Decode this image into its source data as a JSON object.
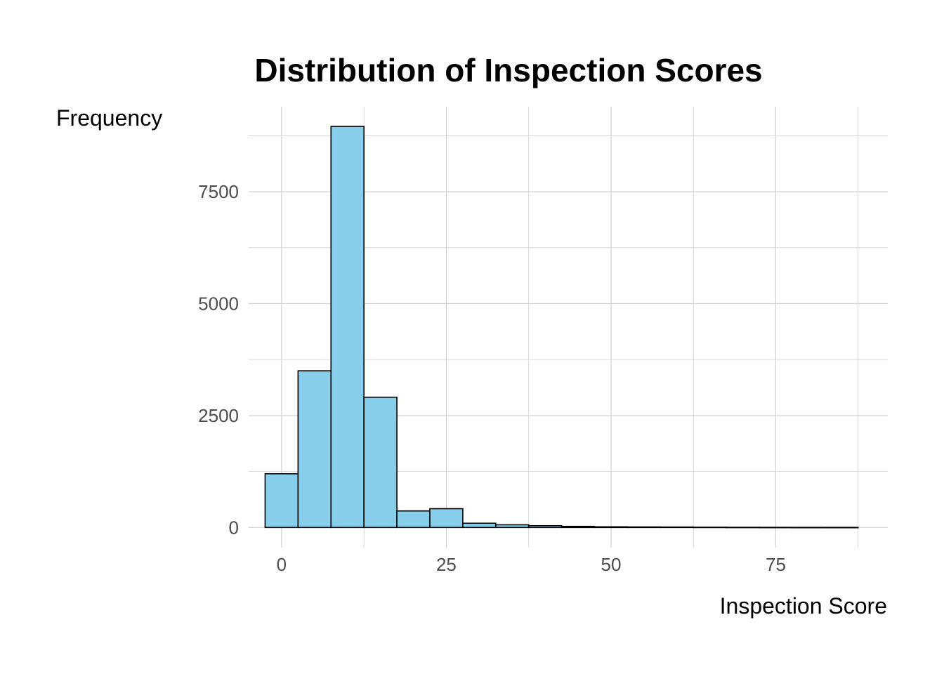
{
  "chart_data": {
    "type": "bar",
    "title": "Distribution of Inspection Scores",
    "xlabel": "Inspection Score",
    "ylabel": "Frequency",
    "bin_width": 5,
    "x": [
      0,
      5,
      10,
      15,
      20,
      25,
      30,
      35,
      40,
      45,
      50,
      55,
      60,
      65,
      70,
      75,
      80,
      85
    ],
    "values": [
      1200,
      3500,
      8960,
      2910,
      370,
      420,
      95,
      60,
      40,
      25,
      15,
      12,
      10,
      6,
      4,
      3,
      2,
      2
    ],
    "xlim": [
      -5,
      92
    ],
    "ylim": [
      -450,
      9400
    ],
    "x_ticks": [
      0,
      25,
      50,
      75
    ],
    "y_ticks": [
      0,
      2500,
      5000,
      7500
    ],
    "x_tick_labels": [
      "0",
      "25",
      "50",
      "75"
    ],
    "y_tick_labels": [
      "0",
      "2500",
      "5000",
      "7500"
    ],
    "grid": true,
    "legend": "none",
    "bar_color": "#87CEEB",
    "bar_edge_color": "#000000"
  }
}
